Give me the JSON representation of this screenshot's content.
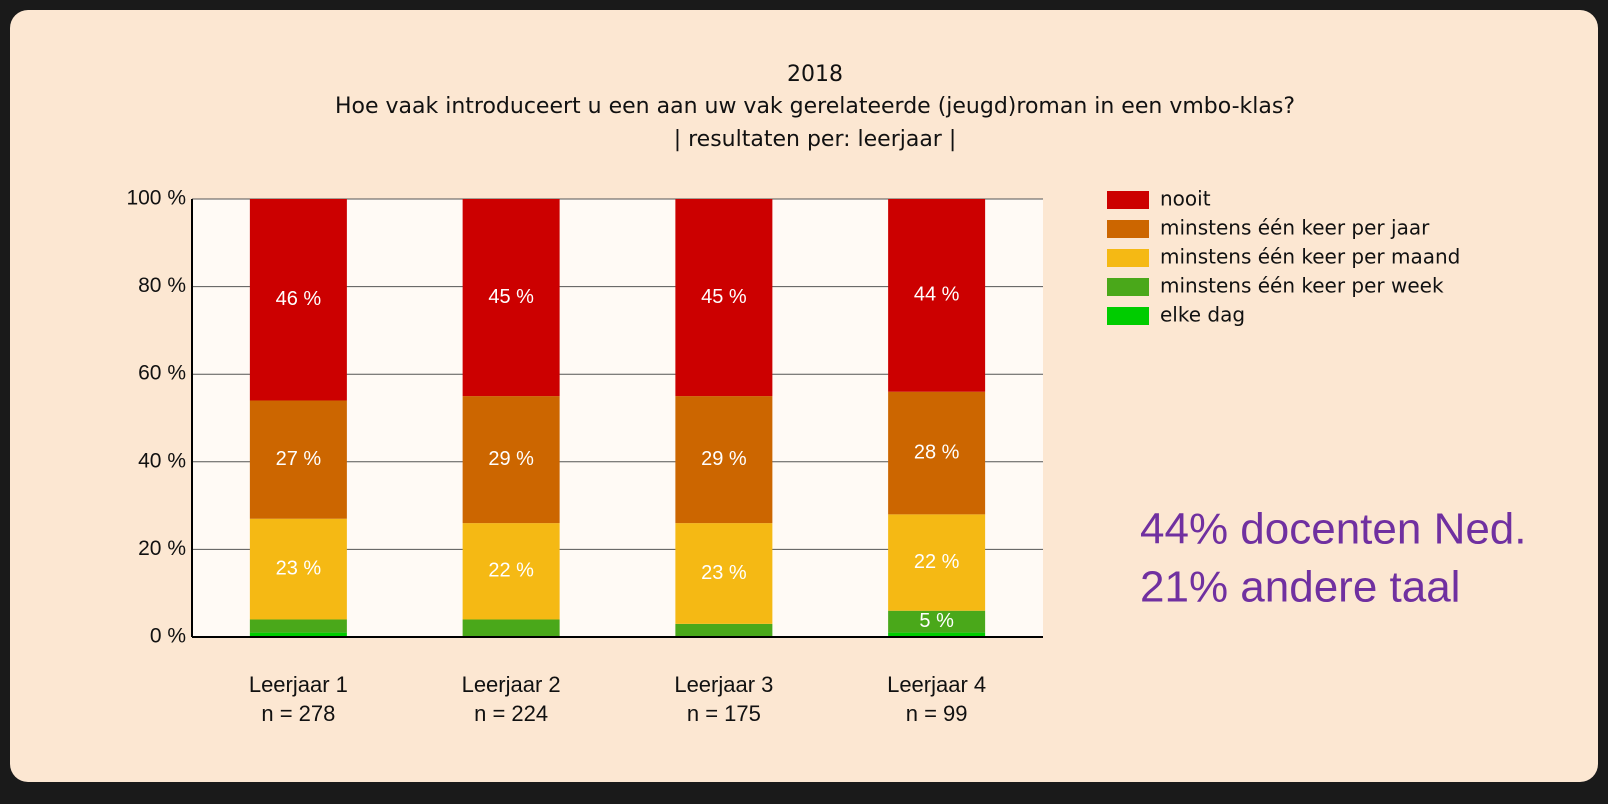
{
  "chart_data": {
    "type": "stacked_bar",
    "title": "2018",
    "subtitle": [
      "Hoe vaak introduceert u een aan uw vak gerelateerde (jeugd)roman in een vmbo-klas?",
      "| resultaten per: leerjaar |"
    ],
    "categories": [
      "Leerjaar 1",
      "Leerjaar 2",
      "Leerjaar 3",
      "Leerjaar 4"
    ],
    "category_counts": [
      "n = 278",
      "n = 224",
      "n = 175",
      "n = 99"
    ],
    "series": [
      {
        "name": "nooit",
        "color": "#cc0000",
        "values": [
          46,
          45,
          45,
          44
        ],
        "value_labels": [
          "46 %",
          "45 %",
          "45 %",
          "44 %"
        ]
      },
      {
        "name": "minstens één keer per jaar",
        "color": "#cc6600",
        "values": [
          27,
          29,
          29,
          28
        ],
        "value_labels": [
          "27 %",
          "29 %",
          "29 %",
          "28 %"
        ]
      },
      {
        "name": "minstens één keer per maand",
        "color": "#f5b914",
        "values": [
          23,
          22,
          23,
          22
        ],
        "value_labels": [
          "23 %",
          "22 %",
          "23 %",
          "22 %"
        ]
      },
      {
        "name": "minstens één keer per week",
        "color": "#4aa81a",
        "values": [
          3,
          4,
          3,
          5
        ],
        "value_labels": [
          null,
          null,
          null,
          "5 %"
        ]
      },
      {
        "name": "elke dag",
        "color": "#00cc00",
        "values": [
          1,
          0,
          0,
          1
        ],
        "value_labels": [
          null,
          null,
          null,
          null
        ]
      }
    ],
    "ylim": [
      0,
      100
    ],
    "yticks": [
      {
        "value": 0,
        "label": "0 %"
      },
      {
        "value": 20,
        "label": "20 %"
      },
      {
        "value": 40,
        "label": "40 %"
      },
      {
        "value": 60,
        "label": "60 %"
      },
      {
        "value": 80,
        "label": "80 %"
      },
      {
        "value": 100,
        "label": "100 %"
      }
    ],
    "grid": true,
    "legend": "right",
    "annotations": [
      "44% docenten Ned.",
      "21% andere taal"
    ]
  }
}
